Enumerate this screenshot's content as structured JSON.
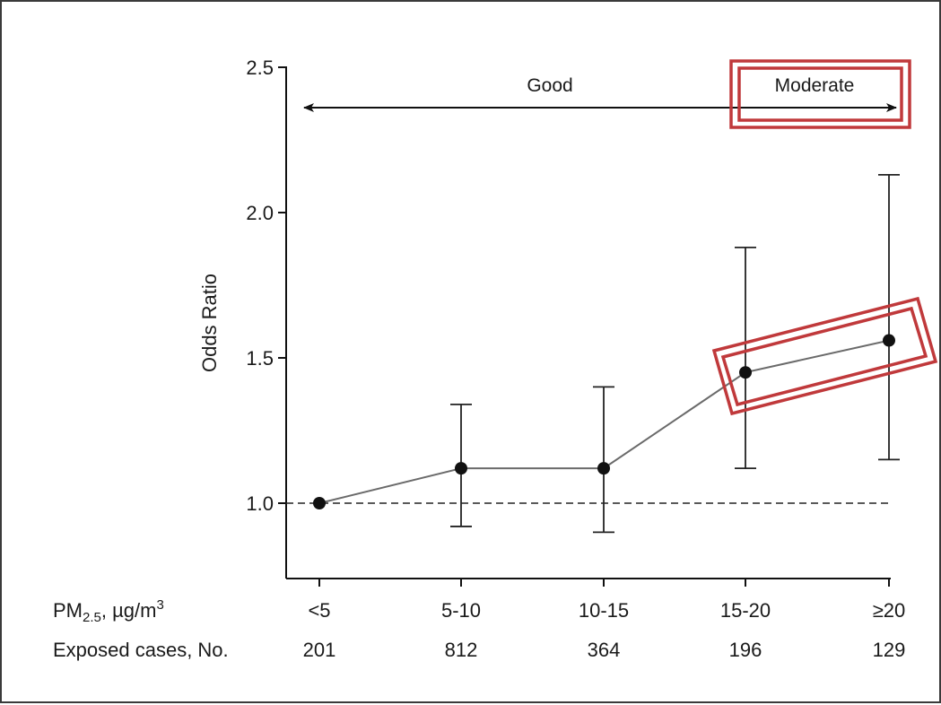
{
  "chart_data": {
    "type": "scatter",
    "ylabel": "Odds Ratio",
    "xlabel_html_parts": {
      "prefix": "PM",
      "subscript": "2.5",
      "middle": ", µg/m",
      "superscript": "3"
    },
    "row2_label": "Exposed cases, No.",
    "categories": [
      "<5",
      "5-10",
      "10-15",
      "15-20",
      "≥20"
    ],
    "exposed_cases": [
      "201",
      "812",
      "364",
      "196",
      "129"
    ],
    "values": [
      1.0,
      1.12,
      1.12,
      1.45,
      1.56
    ],
    "ci_lower": [
      null,
      0.92,
      0.9,
      1.12,
      1.15
    ],
    "ci_upper": [
      null,
      1.34,
      1.4,
      1.88,
      2.13
    ],
    "yticks": [
      "1.0",
      "1.5",
      "2.0",
      "2.5"
    ],
    "ytick_values": [
      1.0,
      1.5,
      2.0,
      2.5
    ],
    "ylim": [
      0.75,
      2.5
    ],
    "reference_line": 1.0,
    "bands": [
      {
        "label": "Good",
        "from_category": 0,
        "to_category": 3
      },
      {
        "label": "Moderate",
        "from_category": 3,
        "to_category": 4
      }
    ],
    "highlight_color": "#c0393b",
    "line_color": "#6a6a6a",
    "point_color": "#111111",
    "grid": false
  }
}
